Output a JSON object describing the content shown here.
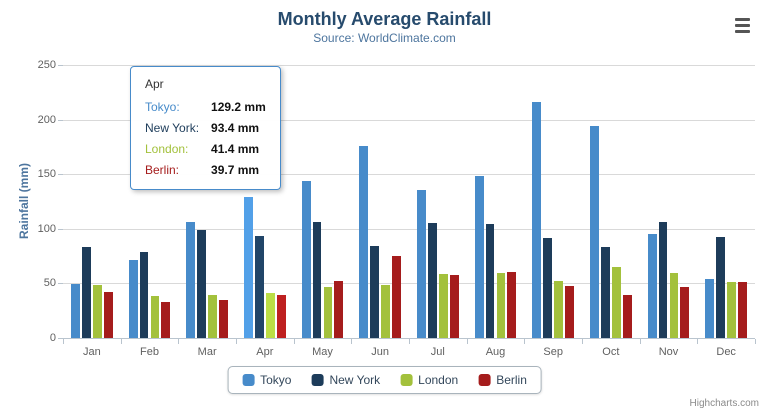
{
  "title": "Monthly Average Rainfall",
  "subtitle": "Source: WorldClimate.com",
  "yaxis_title": "Rainfall (mm)",
  "credits": "Highcharts.com",
  "context_menu_icon": "hamburger-menu-icon",
  "colors": {
    "title": "#274b6d",
    "subtitle": "#4d759e",
    "axis_labels": "#606060",
    "gridline": "#d9d9d9",
    "tooltip_border": "#478bca"
  },
  "chart_data": {
    "type": "bar",
    "orientation": "vertical",
    "categories": [
      "Jan",
      "Feb",
      "Mar",
      "Apr",
      "May",
      "Jun",
      "Jul",
      "Aug",
      "Sep",
      "Oct",
      "Nov",
      "Dec"
    ],
    "series": [
      {
        "name": "Tokyo",
        "color": "#478bca",
        "values": [
          49.9,
          71.5,
          106.4,
          129.2,
          144.0,
          176.0,
          135.6,
          148.5,
          216.4,
          194.1,
          95.6,
          54.4
        ]
      },
      {
        "name": "New York",
        "color": "#1d3c5a",
        "values": [
          83.6,
          78.8,
          98.5,
          93.4,
          106.0,
          84.5,
          105.0,
          104.3,
          91.2,
          83.5,
          106.6,
          92.3
        ]
      },
      {
        "name": "London",
        "color": "#a3c13c",
        "values": [
          48.9,
          38.8,
          39.3,
          41.4,
          47.0,
          48.3,
          59.0,
          59.6,
          52.4,
          65.2,
          59.3,
          51.2
        ]
      },
      {
        "name": "Berlin",
        "color": "#a51c1c",
        "values": [
          42.4,
          33.2,
          34.5,
          39.7,
          52.6,
          75.5,
          57.4,
          60.4,
          47.6,
          39.1,
          46.8,
          51.1
        ]
      }
    ],
    "ylim": [
      0,
      250
    ],
    "yticks": [
      0,
      50,
      100,
      150,
      200,
      250
    ],
    "grid": true,
    "legend_position": "bottom",
    "title": "Monthly Average Rainfall",
    "xlabel": "",
    "ylabel": "Rainfall (mm)"
  },
  "tooltip": {
    "header": "Apr",
    "rows": [
      {
        "name": "Tokyo:",
        "value": "129.2 mm"
      },
      {
        "name": "New York:",
        "value": "93.4 mm"
      },
      {
        "name": "London:",
        "value": "41.4 mm"
      },
      {
        "name": "Berlin:",
        "value": "39.7 mm"
      }
    ]
  }
}
